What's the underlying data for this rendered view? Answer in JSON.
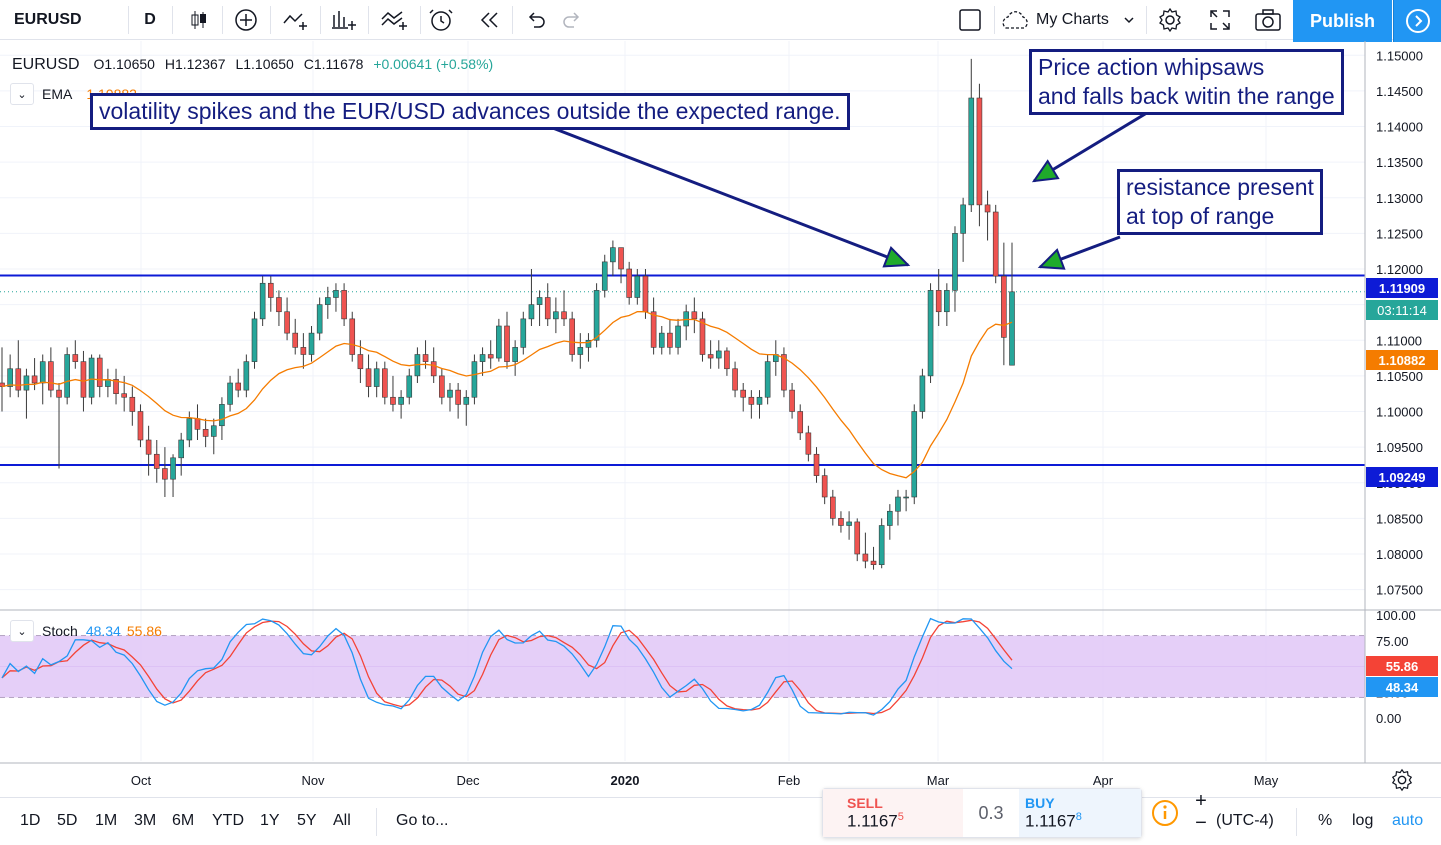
{
  "toolbar": {
    "symbol": "EURUSD",
    "interval": "D",
    "my_charts": "My Charts",
    "publish": "Publish"
  },
  "legend": {
    "symbol": "EURUSD",
    "open": "O1.10650",
    "high": "H1.12367",
    "low": "L1.10650",
    "close": "C1.11678",
    "change": "+0.00641 (+0.58%)",
    "ema_label": "EMA",
    "ema_value": "1.10882"
  },
  "stoch_legend": {
    "label": "Stoch",
    "k": "48.34",
    "d": "55.86"
  },
  "annotations": {
    "left": "volatility spikes and the EUR/USD advances outside the expected range.",
    "top_right_line1": "Price action whipsaws",
    "top_right_line2": "and falls back witin the range",
    "mid_right_line1": "resistance present",
    "mid_right_line2": "at top of range"
  },
  "price_labels": {
    "upper_line": "1.11909",
    "countdown": "03:11:14",
    "ema": "1.10882",
    "lower_line": "1.09249",
    "stoch_d": "55.86",
    "stoch_k": "48.34"
  },
  "colors": {
    "up": "#26a69a",
    "down": "#ef5350",
    "ema": "#f57c00",
    "range_line": "#0d1bd6",
    "annot": "#141d80",
    "stoch_k": "#2196f3",
    "stoch_d": "#f44336",
    "stoch_band": "#e1c7f7"
  },
  "chart_data": {
    "type": "candlestick",
    "symbol": "EURUSD",
    "timeframe": "D",
    "price_axis_ticks": [
      "1.15000",
      "1.14500",
      "1.14000",
      "1.13500",
      "1.13000",
      "1.12500",
      "1.12000",
      "1.11500",
      "1.11000",
      "1.10500",
      "1.10000",
      "1.09500",
      "1.09000",
      "1.08500",
      "1.08000",
      "1.07500"
    ],
    "price_axis_range": [
      1.072,
      1.152
    ],
    "stoch_axis_ticks": [
      "100.00",
      "75.00",
      "50.00",
      "25.00",
      "0.00"
    ],
    "stoch_bands": [
      20,
      80
    ],
    "time_axis_labels": [
      "Oct",
      "Nov",
      "Dec",
      "2020",
      "Feb",
      "Mar",
      "Apr",
      "May"
    ],
    "horizontal_lines": [
      1.11909,
      1.09249
    ],
    "ohlc": [
      [
        1.104,
        1.109,
        1.1,
        1.1035
      ],
      [
        1.1035,
        1.108,
        1.102,
        1.106
      ],
      [
        1.106,
        1.11,
        1.102,
        1.103
      ],
      [
        1.103,
        1.106,
        1.099,
        1.105
      ],
      [
        1.105,
        1.1075,
        1.103,
        1.104
      ],
      [
        1.104,
        1.108,
        1.101,
        1.107
      ],
      [
        1.107,
        1.109,
        1.102,
        1.103
      ],
      [
        1.103,
        1.104,
        1.092,
        1.102
      ],
      [
        1.102,
        1.109,
        1.101,
        1.108
      ],
      [
        1.108,
        1.11,
        1.106,
        1.107
      ],
      [
        1.107,
        1.1085,
        1.1,
        1.102
      ],
      [
        1.102,
        1.108,
        1.101,
        1.1075
      ],
      [
        1.1075,
        1.108,
        1.102,
        1.1035
      ],
      [
        1.1035,
        1.106,
        1.102,
        1.1045
      ],
      [
        1.1045,
        1.106,
        1.101,
        1.1025
      ],
      [
        1.1025,
        1.105,
        1.1,
        1.102
      ],
      [
        1.102,
        1.1035,
        1.098,
        1.1
      ],
      [
        1.1,
        1.101,
        1.095,
        1.096
      ],
      [
        1.096,
        1.098,
        1.091,
        1.094
      ],
      [
        1.094,
        1.096,
        1.09,
        1.092
      ],
      [
        1.092,
        1.095,
        1.088,
        1.0905
      ],
      [
        1.0905,
        1.094,
        1.088,
        1.0935
      ],
      [
        1.0935,
        1.097,
        1.091,
        1.096
      ],
      [
        1.096,
        1.1,
        1.095,
        1.099
      ],
      [
        1.099,
        1.101,
        1.096,
        1.0975
      ],
      [
        1.0975,
        1.099,
        1.095,
        1.0965
      ],
      [
        1.0965,
        1.099,
        1.094,
        1.098
      ],
      [
        1.098,
        1.102,
        1.096,
        1.101
      ],
      [
        1.101,
        1.105,
        1.1,
        1.104
      ],
      [
        1.104,
        1.106,
        1.102,
        1.103
      ],
      [
        1.103,
        1.108,
        1.102,
        1.107
      ],
      [
        1.107,
        1.114,
        1.106,
        1.113
      ],
      [
        1.113,
        1.119,
        1.112,
        1.118
      ],
      [
        1.118,
        1.119,
        1.114,
        1.116
      ],
      [
        1.116,
        1.117,
        1.112,
        1.114
      ],
      [
        1.114,
        1.116,
        1.11,
        1.111
      ],
      [
        1.111,
        1.113,
        1.108,
        1.109
      ],
      [
        1.109,
        1.111,
        1.106,
        1.108
      ],
      [
        1.108,
        1.112,
        1.107,
        1.111
      ],
      [
        1.111,
        1.116,
        1.11,
        1.115
      ],
      [
        1.115,
        1.1175,
        1.113,
        1.116
      ],
      [
        1.116,
        1.118,
        1.114,
        1.117
      ],
      [
        1.117,
        1.118,
        1.112,
        1.113
      ],
      [
        1.113,
        1.114,
        1.107,
        1.108
      ],
      [
        1.108,
        1.11,
        1.104,
        1.106
      ],
      [
        1.106,
        1.108,
        1.102,
        1.1035
      ],
      [
        1.1035,
        1.107,
        1.102,
        1.106
      ],
      [
        1.106,
        1.107,
        1.101,
        1.102
      ],
      [
        1.102,
        1.105,
        1.1,
        1.101
      ],
      [
        1.101,
        1.103,
        1.099,
        1.102
      ],
      [
        1.102,
        1.106,
        1.101,
        1.105
      ],
      [
        1.105,
        1.109,
        1.104,
        1.108
      ],
      [
        1.108,
        1.11,
        1.106,
        1.107
      ],
      [
        1.107,
        1.109,
        1.104,
        1.105
      ],
      [
        1.105,
        1.106,
        1.101,
        1.102
      ],
      [
        1.102,
        1.104,
        1.1,
        1.103
      ],
      [
        1.103,
        1.104,
        1.099,
        1.101
      ],
      [
        1.101,
        1.103,
        1.098,
        1.102
      ],
      [
        1.102,
        1.108,
        1.101,
        1.107
      ],
      [
        1.107,
        1.109,
        1.105,
        1.108
      ],
      [
        1.108,
        1.11,
        1.106,
        1.1075
      ],
      [
        1.1075,
        1.113,
        1.107,
        1.112
      ],
      [
        1.112,
        1.114,
        1.106,
        1.107
      ],
      [
        1.107,
        1.11,
        1.105,
        1.109
      ],
      [
        1.109,
        1.114,
        1.108,
        1.113
      ],
      [
        1.113,
        1.12,
        1.112,
        1.115
      ],
      [
        1.115,
        1.117,
        1.112,
        1.116
      ],
      [
        1.116,
        1.118,
        1.112,
        1.113
      ],
      [
        1.113,
        1.116,
        1.111,
        1.114
      ],
      [
        1.114,
        1.117,
        1.112,
        1.113
      ],
      [
        1.113,
        1.114,
        1.107,
        1.108
      ],
      [
        1.108,
        1.111,
        1.106,
        1.109
      ],
      [
        1.109,
        1.111,
        1.107,
        1.11
      ],
      [
        1.11,
        1.118,
        1.109,
        1.117
      ],
      [
        1.117,
        1.122,
        1.116,
        1.121
      ],
      [
        1.121,
        1.124,
        1.119,
        1.123
      ],
      [
        1.123,
        1.123,
        1.118,
        1.12
      ],
      [
        1.12,
        1.121,
        1.115,
        1.116
      ],
      [
        1.116,
        1.12,
        1.115,
        1.119
      ],
      [
        1.119,
        1.12,
        1.113,
        1.114
      ],
      [
        1.114,
        1.116,
        1.108,
        1.109
      ],
      [
        1.109,
        1.112,
        1.108,
        1.111
      ],
      [
        1.111,
        1.113,
        1.108,
        1.109
      ],
      [
        1.109,
        1.113,
        1.108,
        1.112
      ],
      [
        1.112,
        1.115,
        1.11,
        1.114
      ],
      [
        1.114,
        1.116,
        1.111,
        1.113
      ],
      [
        1.113,
        1.114,
        1.107,
        1.108
      ],
      [
        1.108,
        1.11,
        1.106,
        1.1075
      ],
      [
        1.1075,
        1.11,
        1.106,
        1.1085
      ],
      [
        1.1085,
        1.109,
        1.105,
        1.106
      ],
      [
        1.106,
        1.107,
        1.102,
        1.103
      ],
      [
        1.103,
        1.104,
        1.1,
        1.102
      ],
      [
        1.102,
        1.103,
        1.099,
        1.101
      ],
      [
        1.101,
        1.103,
        1.099,
        1.102
      ],
      [
        1.102,
        1.108,
        1.101,
        1.107
      ],
      [
        1.107,
        1.11,
        1.105,
        1.108
      ],
      [
        1.108,
        1.109,
        1.102,
        1.103
      ],
      [
        1.103,
        1.104,
        1.099,
        1.1
      ],
      [
        1.1,
        1.101,
        1.096,
        1.097
      ],
      [
        1.097,
        1.098,
        1.093,
        1.094
      ],
      [
        1.094,
        1.095,
        1.09,
        1.091
      ],
      [
        1.091,
        1.092,
        1.087,
        1.088
      ],
      [
        1.088,
        1.089,
        1.084,
        1.085
      ],
      [
        1.085,
        1.086,
        1.083,
        1.084
      ],
      [
        1.084,
        1.086,
        1.082,
        1.0845
      ],
      [
        1.0845,
        1.085,
        1.079,
        1.08
      ],
      [
        1.08,
        1.083,
        1.078,
        1.079
      ],
      [
        1.079,
        1.081,
        1.0778,
        1.0785
      ],
      [
        1.0785,
        1.085,
        1.078,
        1.084
      ],
      [
        1.084,
        1.087,
        1.082,
        1.086
      ],
      [
        1.086,
        1.089,
        1.084,
        1.088
      ],
      [
        1.088,
        1.089,
        1.086,
        1.088
      ],
      [
        1.088,
        1.101,
        1.087,
        1.1
      ],
      [
        1.1,
        1.106,
        1.099,
        1.105
      ],
      [
        1.105,
        1.118,
        1.104,
        1.117
      ],
      [
        1.117,
        1.12,
        1.112,
        1.114
      ],
      [
        1.114,
        1.118,
        1.112,
        1.117
      ],
      [
        1.117,
        1.126,
        1.114,
        1.125
      ],
      [
        1.125,
        1.13,
        1.121,
        1.129
      ],
      [
        1.129,
        1.1495,
        1.128,
        1.144
      ],
      [
        1.144,
        1.146,
        1.126,
        1.129
      ],
      [
        1.129,
        1.131,
        1.124,
        1.128
      ],
      [
        1.128,
        1.129,
        1.118,
        1.119
      ],
      [
        1.119,
        1.1237,
        1.1065,
        1.1104
      ],
      [
        1.1065,
        1.1237,
        1.1065,
        1.1168
      ]
    ],
    "stoch": {
      "k_label": "48.34",
      "d_label": "55.86"
    }
  }
}
